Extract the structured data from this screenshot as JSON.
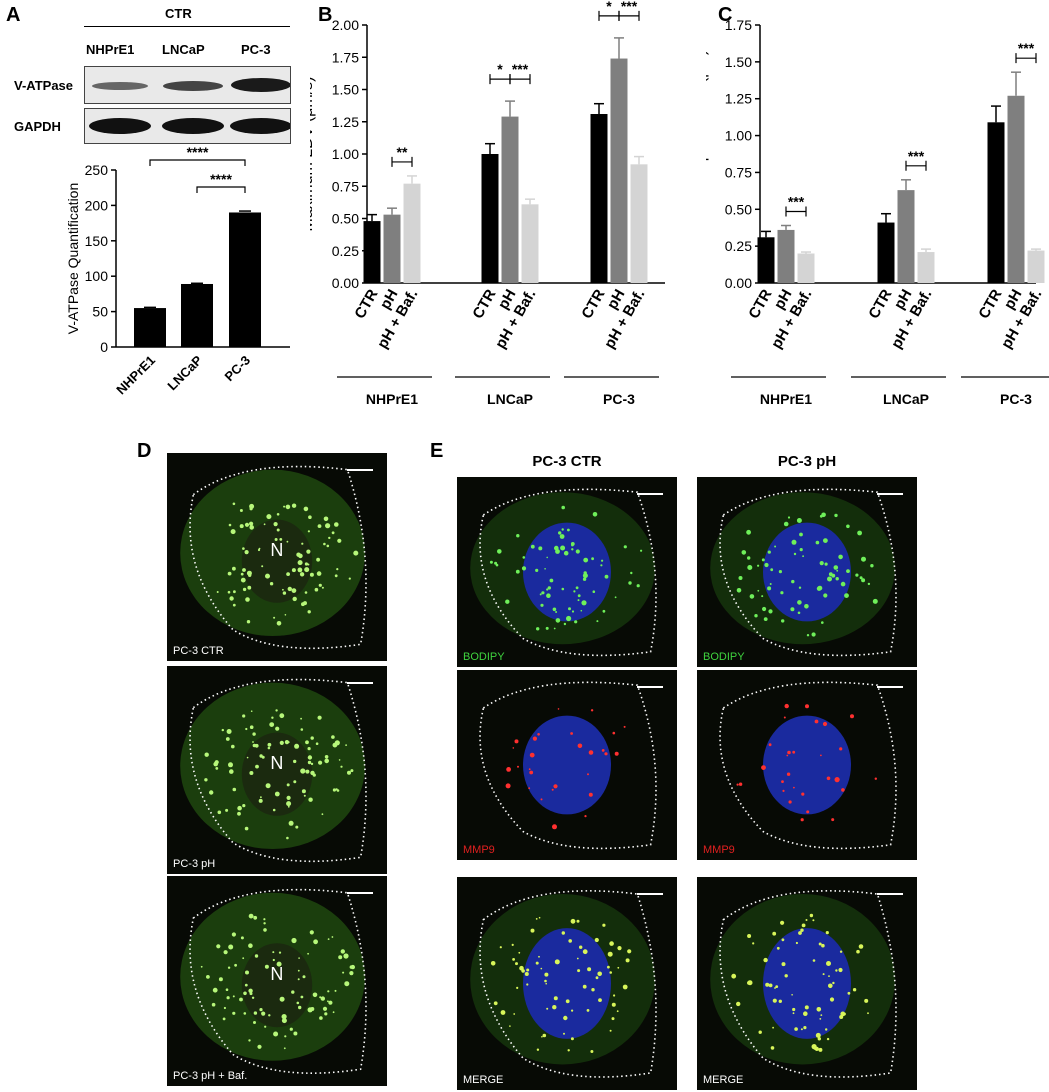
{
  "panels": {
    "A": "A",
    "B": "B",
    "C": "C",
    "D": "D",
    "E": "E"
  },
  "blot": {
    "group": "CTR",
    "lanes": [
      "NHPrE1",
      "LNCaP",
      "PC-3"
    ],
    "rows": [
      "V-ATPase",
      "GAPDH"
    ]
  },
  "chart_data": [
    {
      "id": "A",
      "type": "bar",
      "categories": [
        "NHPrE1",
        "LNCaP",
        "PC-3"
      ],
      "values": [
        55,
        89,
        190
      ],
      "errors": [
        1,
        1,
        2
      ],
      "ylabel": "V-ATPase Quantification",
      "ylim": [
        0,
        250
      ],
      "yticks": [
        0,
        50,
        100,
        150,
        200,
        250
      ],
      "significance": [
        {
          "from": 0,
          "to": 2,
          "label": "****"
        },
        {
          "from": 1,
          "to": 2,
          "label": "****"
        }
      ]
    },
    {
      "id": "B",
      "type": "bar",
      "groups": [
        "NHPrE1",
        "LNCaP",
        "PC-3"
      ],
      "conditions": [
        "CTR",
        "pH",
        "pH + Baf."
      ],
      "colors": [
        "#000000",
        "#7f7f7f",
        "#d4d4d4"
      ],
      "values": [
        [
          0.48,
          0.53,
          0.77
        ],
        [
          1.0,
          1.29,
          0.61
        ],
        [
          1.31,
          1.74,
          0.92
        ]
      ],
      "errors": [
        [
          0.05,
          0.05,
          0.06
        ],
        [
          0.08,
          0.12,
          0.04
        ],
        [
          0.08,
          0.16,
          0.06
        ]
      ],
      "ylabel": "Maximum LDV (μm/s)",
      "ylim": [
        0,
        2.0
      ],
      "yticks": [
        "0.00",
        "0.25",
        "0.50",
        "0.75",
        "1.00",
        "1.25",
        "1.50",
        "1.75",
        "2.00"
      ],
      "significance": [
        {
          "group": 0,
          "from": 1,
          "to": 2,
          "label": "**"
        },
        {
          "group": 1,
          "from": 0,
          "to": 1,
          "label": "*"
        },
        {
          "group": 1,
          "from": 1,
          "to": 2,
          "label": "***"
        },
        {
          "group": 2,
          "from": 0,
          "to": 1,
          "label": "*"
        },
        {
          "group": 2,
          "from": 1,
          "to": 2,
          "label": "***"
        }
      ]
    },
    {
      "id": "C",
      "type": "bar",
      "groups": [
        "NHPrE1",
        "LNCaP",
        "PC-3"
      ],
      "conditions": [
        "CTR",
        "pH",
        "pH + Baf."
      ],
      "colors": [
        "#000000",
        "#7f7f7f",
        "#d4d4d4"
      ],
      "values": [
        [
          0.31,
          0.36,
          0.2
        ],
        [
          0.41,
          0.63,
          0.21
        ],
        [
          1.09,
          1.27,
          0.22
        ]
      ],
      "errors": [
        [
          0.04,
          0.03,
          0.01
        ],
        [
          0.06,
          0.07,
          0.02
        ],
        [
          0.11,
          0.16,
          0.01
        ]
      ],
      "ylabel": "Maximum Displacement (μm)",
      "ylim": [
        0,
        1.75
      ],
      "yticks": [
        "0.00",
        "0.25",
        "0.50",
        "0.75",
        "1.00",
        "1.25",
        "1.50",
        "1.75"
      ],
      "significance": [
        {
          "group": 0,
          "from": 1,
          "to": 2,
          "label": "***"
        },
        {
          "group": 1,
          "from": 1,
          "to": 2,
          "label": "***"
        },
        {
          "group": 2,
          "from": 1,
          "to": 2,
          "label": "***"
        }
      ]
    }
  ],
  "micrographs": {
    "d": {
      "nucleus_label": "N",
      "labels": [
        "PC-3 CTR",
        "PC-3 pH",
        "PC-3 pH + Baf."
      ]
    },
    "e": {
      "col_titles": [
        "PC-3 CTR",
        "PC-3 pH"
      ],
      "row_labels": [
        "BODIPY",
        "MMP9",
        "MERGE"
      ],
      "row_label_colors": [
        "#3fd33f",
        "#e02020",
        "#ffffff"
      ]
    }
  }
}
